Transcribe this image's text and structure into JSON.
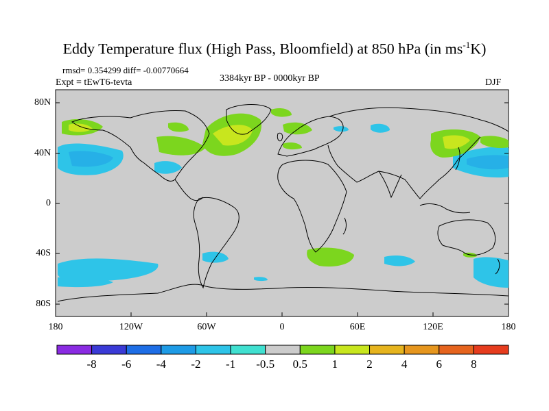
{
  "title": {
    "main": "Eddy Temperature flux (High Pass, Bloomfield) at 850 hPa (in ms",
    "sup": "-1",
    "end": "K)"
  },
  "subtitles": {
    "rmsd": "rmsd= 0.354299 diff= -0.00770664",
    "expt": "Expt = tEwT6-tevta",
    "period": "3384kyr BP - 0000kyr BP",
    "season": "DJF"
  },
  "axes": {
    "lat_labels": [
      "80N",
      "40N",
      "0",
      "40S",
      "80S"
    ],
    "lon_labels": [
      "180",
      "120W",
      "60W",
      "0",
      "60E",
      "120E",
      "180"
    ]
  },
  "colorbar": {
    "labels": [
      "-8",
      "-6",
      "-4",
      "-2",
      "-1",
      "-0.5",
      "0.5",
      "1",
      "2",
      "4",
      "6",
      "8"
    ],
    "colors": [
      "#8a2be2",
      "#3a3ad6",
      "#1e6ee6",
      "#1e9be6",
      "#2ec4e8",
      "#40e0d0",
      "#cccccc",
      "#7cd61e",
      "#c8e61e",
      "#e6b41e",
      "#e6961e",
      "#e6641e",
      "#e63c1e"
    ]
  },
  "colors": {
    "background_zero": "#cccccc",
    "negative_light": "#40d0e8",
    "negative_mid": "#2ec4e8",
    "positive_light": "#7cd61e",
    "positive_mid": "#c8e61e"
  }
}
